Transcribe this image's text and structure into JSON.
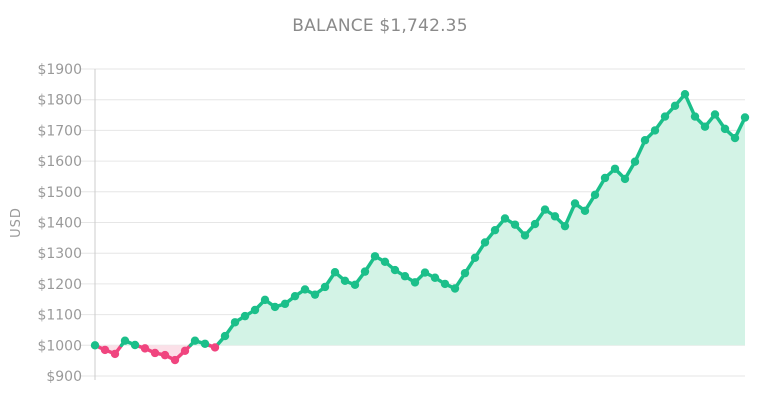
{
  "chart_data": {
    "type": "area",
    "title": "BALANCE $1,742.35",
    "ylabel": "USD",
    "xlabel": "",
    "ylim": [
      900,
      1900
    ],
    "yticks": [
      1900,
      1800,
      1700,
      1600,
      1500,
      1400,
      1300,
      1200,
      1100,
      1000,
      900
    ],
    "ytick_labels": [
      "$1900",
      "$1800",
      "$1700",
      "$1600",
      "$1500",
      "$1400",
      "$1300",
      "$1200",
      "$1100",
      "$1000",
      "$900"
    ],
    "baseline": 1000,
    "grid": true,
    "legend": "none",
    "colors": {
      "above_line": "#1bbf8a",
      "above_fill": "#d3f3e6",
      "below_line": "#f0457f",
      "below_fill": "#fbe0e8",
      "grid": "#e6e6e6",
      "axis": "#cccccc"
    },
    "series": [
      {
        "values": [
          1000,
          985,
          972,
          1015,
          1001,
          990,
          975,
          968,
          952,
          982,
          1015,
          1005,
          993,
          1030,
          1075,
          1095,
          1115,
          1148,
          1125,
          1135,
          1160,
          1182,
          1165,
          1190,
          1238,
          1210,
          1197,
          1240,
          1290,
          1272,
          1245,
          1225,
          1205,
          1237,
          1220,
          1200,
          1185,
          1235,
          1285,
          1335,
          1375,
          1413,
          1393,
          1358,
          1395,
          1442,
          1420,
          1388,
          1462,
          1438,
          1490,
          1545,
          1575,
          1542,
          1598,
          1668,
          1700,
          1745,
          1780,
          1818,
          1745,
          1712,
          1752,
          1705,
          1675,
          1742
        ]
      }
    ]
  }
}
